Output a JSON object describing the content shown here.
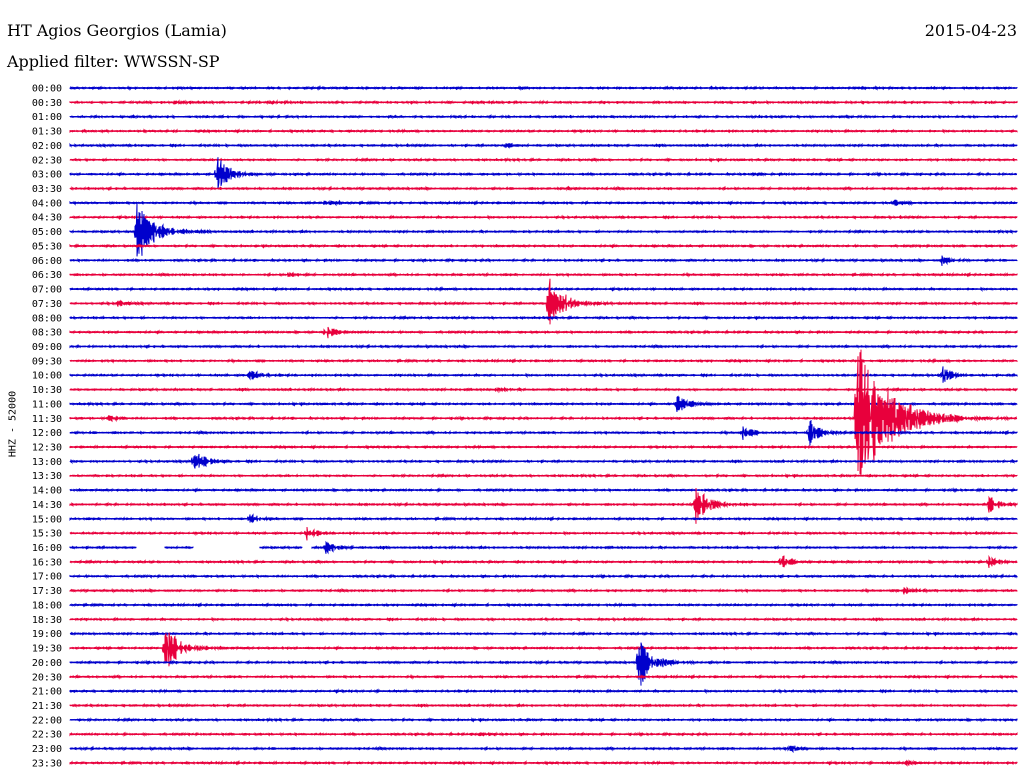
{
  "header": {
    "station": "HT Agios Georgios (Lamia)",
    "filter": "Applied filter: WWSSN-SP",
    "date": "2015-04-23"
  },
  "chart_data": {
    "type": "line",
    "title": "HT Agios Georgios (Lamia)",
    "subtitle": "Applied filter: WWSSN-SP",
    "ylabel": "HHZ - 52000",
    "colors": [
      "#0000cc",
      "#e8003c"
    ],
    "row_labels": [
      "00:00",
      "00:30",
      "01:00",
      "01:30",
      "02:00",
      "02:30",
      "03:00",
      "03:30",
      "04:00",
      "04:30",
      "05:00",
      "05:30",
      "06:00",
      "06:30",
      "07:00",
      "07:30",
      "08:00",
      "08:30",
      "09:00",
      "09:30",
      "10:00",
      "10:30",
      "11:00",
      "11:30",
      "12:00",
      "12:30",
      "13:00",
      "13:30",
      "14:00",
      "14:30",
      "15:00",
      "15:30",
      "16:00",
      "16:30",
      "17:00",
      "17:30",
      "18:00",
      "18:30",
      "19:00",
      "19:30",
      "20:00",
      "20:30",
      "21:00",
      "21:30",
      "22:00",
      "22:30",
      "23:00",
      "23:30"
    ],
    "events": [
      {
        "row": "00:30",
        "x": 0.11,
        "amp": 3
      },
      {
        "row": "00:30",
        "x": 0.21,
        "amp": 2
      },
      {
        "row": "02:00",
        "x": 0.46,
        "amp": 3
      },
      {
        "row": "03:00",
        "x": 0.155,
        "amp": 20
      },
      {
        "row": "03:00",
        "x": 0.72,
        "amp": 2
      },
      {
        "row": "03:30",
        "x": 0.52,
        "amp": 2
      },
      {
        "row": "04:00",
        "x": 0.27,
        "amp": 5
      },
      {
        "row": "04:00",
        "x": 0.87,
        "amp": 3
      },
      {
        "row": "05:00",
        "x": 0.07,
        "amp": 36
      },
      {
        "row": "06:00",
        "x": 0.92,
        "amp": 6
      },
      {
        "row": "06:30",
        "x": 0.23,
        "amp": 3
      },
      {
        "row": "07:30",
        "x": 0.05,
        "amp": 4
      },
      {
        "row": "07:30",
        "x": 0.505,
        "amp": 30
      },
      {
        "row": "08:30",
        "x": 0.27,
        "amp": 8
      },
      {
        "row": "10:00",
        "x": 0.19,
        "amp": 7
      },
      {
        "row": "10:00",
        "x": 0.92,
        "amp": 10
      },
      {
        "row": "10:30",
        "x": 0.45,
        "amp": 3
      },
      {
        "row": "11:00",
        "x": 0.64,
        "amp": 12
      },
      {
        "row": "11:30",
        "x": 0.04,
        "amp": 4
      },
      {
        "row": "11:30",
        "x": 0.83,
        "amp": 90
      },
      {
        "row": "12:00",
        "x": 0.71,
        "amp": 8
      },
      {
        "row": "12:00",
        "x": 0.78,
        "amp": 15
      },
      {
        "row": "13:00",
        "x": 0.13,
        "amp": 14
      },
      {
        "row": "14:30",
        "x": 0.66,
        "amp": 22
      },
      {
        "row": "14:30",
        "x": 0.97,
        "amp": 10
      },
      {
        "row": "15:00",
        "x": 0.19,
        "amp": 7
      },
      {
        "row": "15:30",
        "x": 0.25,
        "amp": 7
      },
      {
        "row": "16:00",
        "x": 0.27,
        "amp": 8
      },
      {
        "row": "16:30",
        "x": 0.75,
        "amp": 9
      },
      {
        "row": "16:30",
        "x": 0.97,
        "amp": 6
      },
      {
        "row": "17:30",
        "x": 0.88,
        "amp": 7
      },
      {
        "row": "19:30",
        "x": 0.1,
        "amp": 28
      },
      {
        "row": "20:00",
        "x": 0.6,
        "amp": 28
      },
      {
        "row": "22:30",
        "x": 0.43,
        "amp": 4
      },
      {
        "row": "23:00",
        "x": 0.76,
        "amp": 5
      },
      {
        "row": "23:30",
        "x": 0.88,
        "amp": 4
      }
    ],
    "gaps": [
      {
        "row": "16:00",
        "from": 0.07,
        "to": 0.1
      },
      {
        "row": "16:00",
        "from": 0.13,
        "to": 0.2
      },
      {
        "row": "16:00",
        "from": 0.245,
        "to": 0.255
      }
    ]
  }
}
